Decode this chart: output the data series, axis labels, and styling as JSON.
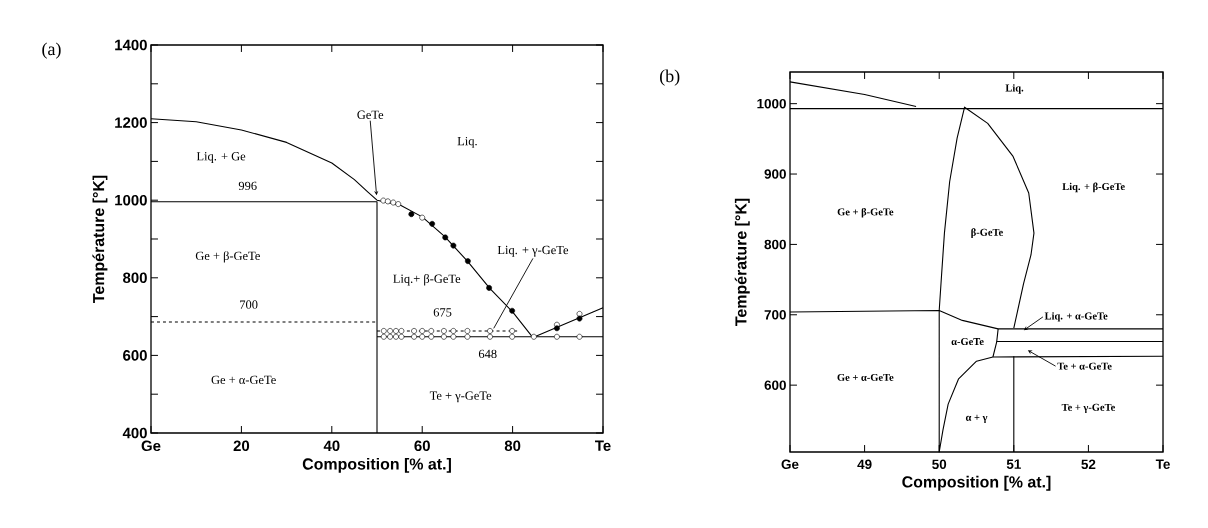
{
  "chart_data": [
    {
      "type": "line",
      "title": "(a)",
      "xlabel": "Composition [% at.]",
      "ylabel": "Température [°K]",
      "xlim": [
        0,
        100
      ],
      "ylim": [
        400,
        1400
      ],
      "xticks": [
        {
          "value": 0,
          "label": "Ge"
        },
        20,
        40,
        60,
        80,
        {
          "value": 100,
          "label": "Te"
        }
      ],
      "yticks": [
        400,
        {
          "value": 500,
          "label": null
        },
        600,
        {
          "value": 700,
          "label": null
        },
        800,
        {
          "value": 900,
          "label": null
        },
        1000,
        {
          "value": 1100,
          "label": null
        },
        1200,
        {
          "value": 1300,
          "label": null
        },
        1400
      ],
      "series": [
        {
          "color": "#000000",
          "x": [
            0,
            10,
            20,
            30,
            40,
            45,
            48,
            50,
            55,
            60,
            65,
            70,
            75,
            80,
            84.5,
            100
          ],
          "values": [
            1210,
            1202,
            1181,
            1149,
            1096,
            1053,
            1021,
            1000,
            988,
            957,
            906,
            843,
            772,
            712,
            646,
            723
          ]
        },
        {
          "color": "#000000",
          "x": [
            0,
            50,
            50
          ],
          "values": [
            996,
            996,
            400
          ]
        },
        {
          "color": "#000000",
          "line_style": "dashed",
          "x": [
            0,
            50
          ],
          "values": [
            686,
            686
          ]
        },
        {
          "color": "#000000",
          "x": [
            50,
            100
          ],
          "values": [
            648,
            648
          ]
        },
        {
          "color": "#000000",
          "line_style": "dashed",
          "x": [
            50,
            81
          ],
          "values": [
            663,
            663
          ]
        },
        {
          "type": "scatter",
          "marker": "circle",
          "color": "#ffffff",
          "x": [
            51.4,
            52.4,
            53.6,
            54.7,
            60,
            51.5,
            52.9,
            54.2,
            55.4,
            58.2,
            60,
            62,
            64.8,
            66.9,
            70,
            75,
            79.9,
            51.5,
            52.9,
            54.2,
            55.4,
            58.2,
            60,
            62,
            64.8,
            66.9,
            70,
            75,
            79.9,
            84.7,
            89.8,
            94.8,
            89.8,
            94.8
          ],
          "values": [
            999,
            997,
            994,
            990,
            955,
            663,
            663,
            663,
            663,
            663,
            663,
            663,
            663,
            663,
            663,
            663,
            663,
            648,
            648,
            648,
            648,
            648,
            648,
            648,
            648,
            648,
            648,
            648,
            648,
            648,
            648,
            648,
            679,
            707
          ]
        },
        {
          "type": "scatter",
          "marker": "circle",
          "color": "#000000",
          "x": [
            57.6,
            62.2,
            65.1,
            66.9,
            70.1,
            74.8,
            79.9,
            89.8,
            94.8
          ],
          "values": [
            964,
            939,
            904,
            883,
            843,
            774,
            715,
            670,
            695
          ]
        }
      ],
      "annotations": [
        "Liq. + Ge",
        "996",
        "Ge + β-GeTe",
        "700",
        "Ge + α-GeTe",
        {
          "text": "GeTe",
          "x": 50,
          "y": 1000
        },
        "Liq.",
        "Liq.+ β-GeTe",
        "675",
        "648",
        "Te + γ-GeTe",
        {
          "text": "Liq. + γ-GeTe",
          "x": 75.5,
          "y": 663
        }
      ]
    },
    {
      "type": "line",
      "title": "(b)",
      "xlabel": "Composition [% at.]",
      "ylabel": "Température [°K]",
      "xlim": [
        48,
        53
      ],
      "ylim": [
        505,
        1045
      ],
      "xticks": [
        {
          "value": 48,
          "label": "Ge"
        },
        49,
        50,
        51,
        52,
        {
          "value": 53,
          "label": "Te"
        }
      ],
      "yticks": [
        600,
        700,
        800,
        900,
        1000
      ],
      "series": [
        {
          "color": "#000000",
          "x": [
            48,
            49,
            49.69
          ],
          "values": [
            1031,
            1013,
            996
          ]
        },
        {
          "color": "#000000",
          "x": [
            48,
            53
          ],
          "values": [
            993,
            993
          ]
        },
        {
          "color": "#000000",
          "x": [
            51.0,
            51.13,
            51.23,
            51.27,
            51.2,
            50.99,
            50.65,
            50.34,
            50.24,
            50.14,
            50.07,
            50.03,
            50,
            50,
            50.05,
            50.12,
            50.26,
            50.5,
            50.72,
            53
          ],
          "values": [
            681,
            744,
            785,
            816,
            873,
            925,
            972,
            995,
            951,
            889,
            816,
            754,
            706,
            505,
            536,
            573,
            609,
            634,
            640,
            641
          ]
        },
        {
          "color": "#000000",
          "x": [
            48,
            50,
            50.31,
            50.79,
            53
          ],
          "values": [
            704,
            706,
            692,
            680,
            680
          ]
        },
        {
          "color": "#000000",
          "x": [
            50.79,
            50.77,
            50.72
          ],
          "values": [
            680,
            661,
            640
          ]
        },
        {
          "color": "#000000",
          "x": [
            50.77,
            53
          ],
          "values": [
            662,
            662
          ]
        },
        {
          "color": "#000000",
          "x": [
            51,
            51
          ],
          "values": [
            505,
            641
          ]
        }
      ],
      "annotations": [
        "Liq.",
        "Liq. + β-GeTe",
        "Ge + β-GeTe",
        "β-GeTe",
        {
          "text": "Liq. + α-GeTe",
          "x": 51.08,
          "y": 674
        },
        "α-GeTe",
        "Te + α-GeTe",
        "Ge + α-GeTe",
        "α + γ",
        "Te + γ-GeTe"
      ]
    }
  ]
}
